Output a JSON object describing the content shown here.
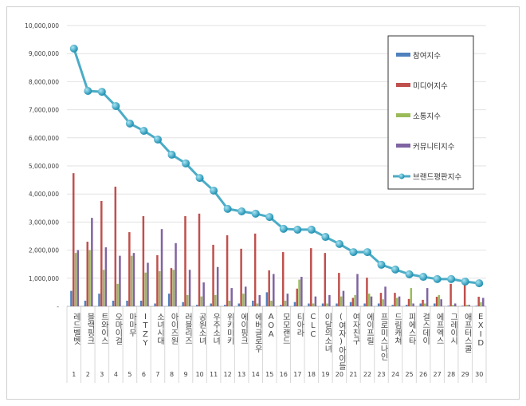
{
  "chart_data": {
    "type": "bar+line",
    "title": "",
    "ylim": [
      0,
      10000000
    ],
    "yticks": [
      "-",
      "1,000,000",
      "2,000,000",
      "3,000,000",
      "4,000,000",
      "5,000,000",
      "6,000,000",
      "7,000,000",
      "8,000,000",
      "9,000,000",
      "10,000,000"
    ],
    "grid": true,
    "legend_position": "top-right",
    "categories": [
      "레드벨벳",
      "블랙핑크",
      "트와이스",
      "오마이걸",
      "마마무",
      "ITZY",
      "소녀시대",
      "아이즈원",
      "러블리즈",
      "공원소녀",
      "우주소녀",
      "위키미키",
      "에이핑크",
      "에버글로우",
      "AOA",
      "모모랜드",
      "티아라",
      "CLC",
      "이달의소녀",
      "(여자)아이들",
      "여자친구",
      "에이프릴",
      "프로미스나인",
      "드림캐쳐",
      "피에스타",
      "걸스데이",
      "에프엑스",
      "그레이시",
      "애프터스쿨",
      "EXID"
    ],
    "ranks": [
      "1",
      "2",
      "3",
      "4",
      "5",
      "6",
      "7",
      "8",
      "9",
      "10",
      "11",
      "12",
      "13",
      "14",
      "15",
      "16",
      "17",
      "18",
      "19",
      "20",
      "21",
      "22",
      "23",
      "24",
      "25",
      "26",
      "27",
      "28",
      "29",
      "30"
    ],
    "series": [
      {
        "name": "참여지수",
        "type": "bar",
        "color": "#4f81bd",
        "values": [
          550000,
          200000,
          450000,
          200000,
          200000,
          200000,
          100000,
          450000,
          150000,
          50000,
          100000,
          50000,
          100000,
          200000,
          500000,
          50000,
          150000,
          100000,
          100000,
          100000,
          150000,
          100000,
          100000,
          50000,
          50000,
          100000,
          100000,
          20000,
          20000,
          20000
        ]
      },
      {
        "name": "미디어지수",
        "type": "bar",
        "color": "#c0504d",
        "values": [
          4740000,
          2300000,
          3750000,
          4260000,
          2640000,
          3210000,
          1820000,
          1360000,
          3210000,
          3300000,
          2190000,
          2530000,
          2050000,
          2590000,
          1280000,
          1930000,
          630000,
          2070000,
          1900000,
          1190000,
          300000,
          1020000,
          480000,
          480000,
          260000,
          230000,
          340000,
          800000,
          820000,
          340000
        ]
      },
      {
        "name": "소통지수",
        "type": "bar",
        "color": "#9bbb59",
        "values": [
          1900000,
          2000000,
          1300000,
          800000,
          1800000,
          1200000,
          1250000,
          1300000,
          400000,
          350000,
          400000,
          200000,
          450000,
          100000,
          200000,
          200000,
          950000,
          100000,
          100000,
          350000,
          400000,
          450000,
          250000,
          300000,
          650000,
          100000,
          400000,
          50000,
          50000,
          150000
        ]
      },
      {
        "name": "커뮤니티지수",
        "type": "bar",
        "color": "#8064a2",
        "values": [
          2000000,
          3150000,
          2100000,
          1800000,
          1900000,
          1550000,
          2750000,
          2250000,
          1300000,
          850000,
          1400000,
          650000,
          700000,
          400000,
          1150000,
          450000,
          1050000,
          350000,
          400000,
          550000,
          1150000,
          350000,
          700000,
          350000,
          100000,
          650000,
          250000,
          100000,
          50000,
          300000
        ]
      },
      {
        "name": "브랜드평판지수",
        "type": "line",
        "color": "#4bacc6",
        "values": [
          9180000,
          7670000,
          7640000,
          7130000,
          6510000,
          6250000,
          5940000,
          5400000,
          5090000,
          4570000,
          4120000,
          3470000,
          3380000,
          3300000,
          3180000,
          2760000,
          2730000,
          2730000,
          2470000,
          2220000,
          1930000,
          1930000,
          1480000,
          1310000,
          1140000,
          1050000,
          970000,
          970000,
          880000,
          820000
        ]
      }
    ]
  }
}
